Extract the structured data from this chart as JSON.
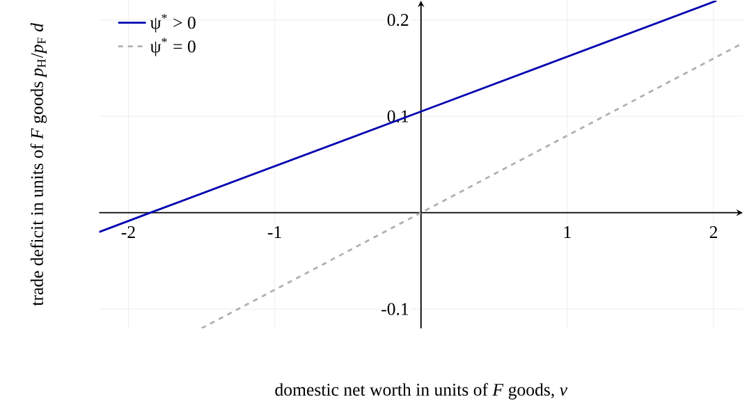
{
  "chart_data": {
    "type": "line",
    "xlabel": "domestic net worth in units of *F* goods, *ν*",
    "ylabel": "trade deficit in units of *F* goods *p*$_{H}$/*p*$_{F}$ *d*",
    "series": [
      {
        "name": "ψ$^{*}$ > 0",
        "color": "#0000b0",
        "x": [
          -2.2,
          -1.85,
          0,
          2.02
        ],
        "values": [
          -0.02,
          0,
          0.105,
          0.22
        ],
        "line_style": "solid"
      },
      {
        "name": "ψ$^{*}$ = 0",
        "color": "#b0b0b0",
        "x": [
          -1.5,
          0,
          2.2
        ],
        "values": [
          -0.12,
          0,
          0.176
        ],
        "line_style": "dashed"
      }
    ],
    "xlim": [
      -2.2,
      2.2
    ],
    "ylim": [
      -0.12,
      0.22
    ],
    "xticks": [
      -2,
      -1,
      1,
      2
    ],
    "yticks": [
      -0.1,
      0.1,
      0.2
    ],
    "grid": true,
    "legend": "top left",
    "marker": "none"
  }
}
